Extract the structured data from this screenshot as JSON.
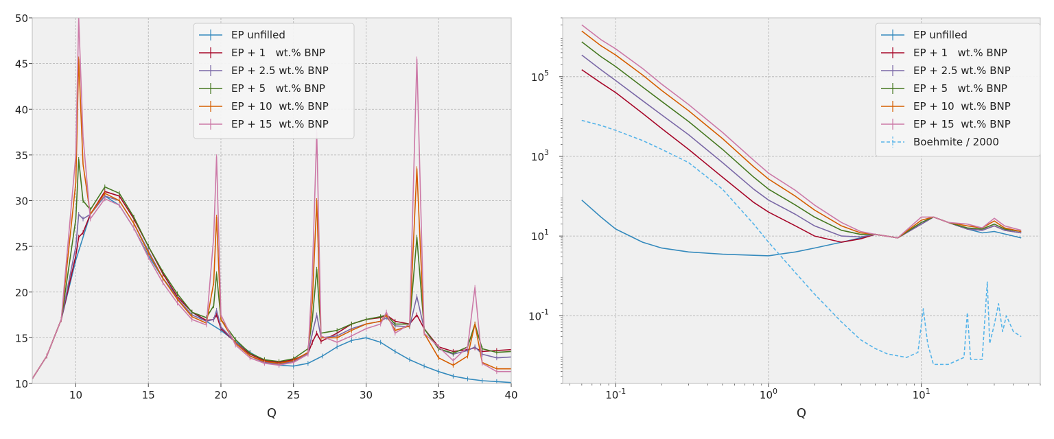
{
  "colors": {
    "bg": "#f0f0f0",
    "grid": "#b0b0b0",
    "EP unfilled": "#348abd",
    "EP + 1   wt.% BNP": "#a60628",
    "EP + 2.5 wt.% BNP": "#7a68a6",
    "EP + 5   wt.% BNP": "#467821",
    "EP + 10  wt.% BNP": "#d55e00",
    "EP + 15  wt.% BNP": "#cc79a7",
    "Boehmite / 2000": "#56b4e9"
  },
  "chart_data": [
    {
      "type": "line",
      "xlabel": "Q",
      "ylabel": "",
      "xlim": [
        7,
        40
      ],
      "ylim": [
        10,
        50
      ],
      "xscale": "linear",
      "yscale": "linear",
      "xticks": [
        10,
        15,
        20,
        25,
        30,
        35,
        40
      ],
      "yticks": [
        10,
        15,
        20,
        25,
        30,
        35,
        40,
        45,
        50
      ],
      "grid": true,
      "legend_position": "top-center",
      "error_bars": true,
      "series": [
        {
          "name": "EP unfilled",
          "x": [
            7,
            8,
            9,
            10,
            11,
            12,
            13,
            14,
            15,
            16,
            17,
            18,
            19,
            20,
            21,
            22,
            23,
            24,
            25,
            26,
            27,
            28,
            29,
            30,
            31,
            32,
            33,
            34,
            35,
            36,
            37,
            38,
            39,
            40
          ],
          "y": [
            10.5,
            13,
            17,
            23.5,
            28.5,
            30.5,
            29.5,
            27,
            24,
            21.5,
            19.5,
            17.8,
            16.8,
            15.8,
            14.6,
            13.4,
            12.5,
            12,
            11.9,
            12.2,
            13,
            14,
            14.7,
            15,
            14.5,
            13.5,
            12.6,
            11.9,
            11.3,
            10.8,
            10.5,
            10.3,
            10.2,
            10.1
          ]
        },
        {
          "name": "EP + 1   wt.% BNP",
          "x": [
            7,
            8,
            9,
            10,
            10.2,
            10.5,
            11,
            12,
            13,
            14,
            15,
            16,
            17,
            18,
            19,
            19.5,
            19.7,
            20,
            21,
            22,
            23,
            24,
            25,
            26,
            26.3,
            26.6,
            26.9,
            28,
            29,
            30,
            31,
            31.4,
            32,
            33,
            33.5,
            34,
            35,
            36,
            37,
            37.5,
            38,
            39,
            40
          ],
          "y": [
            10.5,
            13,
            17,
            24,
            26,
            26.5,
            28.5,
            31,
            30.5,
            28,
            25,
            22,
            19.5,
            17.8,
            16.9,
            17,
            17.5,
            16,
            14.5,
            13.2,
            12.5,
            12.3,
            12.6,
            13.3,
            14.5,
            15.5,
            14.6,
            15.5,
            16.5,
            17,
            17.2,
            17.5,
            16.8,
            16.5,
            17.5,
            16,
            14,
            13.5,
            13.7,
            13.9,
            13.5,
            13.6,
            13.7
          ]
        },
        {
          "name": "EP + 2.5 wt.% BNP",
          "x": [
            7,
            8,
            9,
            10,
            10.2,
            10.5,
            11,
            12,
            13,
            14,
            15,
            16,
            17,
            18,
            19,
            19.5,
            19.7,
            20,
            21,
            22,
            23,
            24,
            25,
            26,
            26.3,
            26.6,
            26.9,
            28,
            29,
            30,
            31,
            31.4,
            32,
            33,
            33.5,
            34,
            35,
            36,
            37,
            37.5,
            38,
            39,
            40
          ],
          "y": [
            10.5,
            13,
            17,
            25,
            28.5,
            28,
            28.5,
            30.5,
            30,
            27.5,
            24.5,
            21.5,
            19.3,
            17.5,
            16.8,
            17,
            18,
            16.2,
            14.5,
            13,
            12.3,
            12.1,
            12.4,
            13.3,
            15.5,
            17.5,
            15,
            15.2,
            16,
            16.5,
            16.8,
            17.2,
            16.3,
            16.2,
            19.5,
            16,
            13.8,
            13.2,
            13.6,
            14,
            13.2,
            12.8,
            12.9
          ]
        },
        {
          "name": "EP + 5   wt.% BNP",
          "x": [
            7,
            8,
            9,
            10,
            10.2,
            10.5,
            11,
            12,
            13,
            14,
            15,
            16,
            17,
            18,
            19,
            19.5,
            19.7,
            20,
            21,
            22,
            23,
            24,
            25,
            26,
            26.3,
            26.6,
            26.9,
            28,
            29,
            30,
            31,
            31.4,
            32,
            33,
            33.5,
            34,
            35,
            36,
            37,
            37.5,
            38,
            39,
            40
          ],
          "y": [
            10.5,
            13,
            17,
            28,
            34.5,
            30,
            29,
            31.5,
            30.8,
            28.2,
            25,
            22.2,
            19.8,
            17.8,
            17.2,
            18.5,
            22,
            17,
            14.8,
            13.3,
            12.6,
            12.4,
            12.7,
            13.8,
            17,
            22.5,
            15.5,
            15.8,
            16.5,
            17,
            17.3,
            17.5,
            16.5,
            16.5,
            26,
            16,
            13.8,
            13.3,
            14,
            16.5,
            13.8,
            13.4,
            13.5
          ]
        },
        {
          "name": "EP + 10  wt.% BNP",
          "x": [
            7,
            8,
            9,
            10,
            10.2,
            10.5,
            11,
            12,
            13,
            14,
            15,
            16,
            17,
            18,
            19,
            19.5,
            19.7,
            20,
            21,
            22,
            23,
            24,
            25,
            26,
            26.3,
            26.6,
            26.9,
            28,
            29,
            30,
            31,
            31.4,
            32,
            33,
            33.5,
            34,
            35,
            36,
            37,
            37.5,
            38,
            39,
            40
          ],
          "y": [
            10.5,
            13,
            17,
            32,
            45.5,
            34,
            28.5,
            30.8,
            30,
            27.5,
            24.3,
            21.5,
            19.2,
            17.3,
            16.6,
            21,
            28.2,
            17,
            14.4,
            13,
            12.4,
            12.2,
            12.5,
            13.4,
            19,
            30,
            15,
            15,
            15.8,
            16.5,
            16.8,
            17.5,
            15.8,
            16.3,
            33.5,
            15.5,
            12.8,
            12,
            13,
            16.5,
            12.3,
            11.6,
            11.6
          ]
        },
        {
          "name": "EP + 15  wt.% BNP",
          "x": [
            7,
            8,
            9,
            10,
            10.2,
            10.5,
            11,
            12,
            13,
            14,
            15,
            16,
            17,
            18,
            19,
            19.5,
            19.7,
            20,
            21,
            22,
            23,
            24,
            25,
            26,
            26.3,
            26.6,
            26.9,
            28,
            29,
            30,
            31,
            31.4,
            32,
            33,
            33.5,
            34,
            35,
            36,
            37,
            37.5,
            38,
            39,
            40
          ],
          "y": [
            10.5,
            13,
            17,
            35,
            50,
            37,
            28,
            30.2,
            29.5,
            27,
            23.8,
            21,
            18.8,
            17,
            16.4,
            26,
            34.8,
            17.5,
            14.2,
            12.8,
            12.2,
            12,
            12.3,
            13.2,
            22,
            37.5,
            15.2,
            14.5,
            15.2,
            16,
            16.5,
            17.8,
            15.5,
            16.5,
            45.5,
            15.5,
            14,
            12.5,
            14,
            20.5,
            12.2,
            11.3,
            11.3
          ]
        }
      ]
    },
    {
      "type": "line",
      "xlabel": "Q",
      "ylabel": "",
      "xlim": [
        0.045,
        60
      ],
      "ylim": [
        0.002,
        3000000
      ],
      "xscale": "log",
      "yscale": "log",
      "xticks": [
        0.1,
        1,
        10
      ],
      "xtick_labels": [
        "10",
        "10",
        "10"
      ],
      "xtick_exponents": [
        "-1",
        "0",
        "1"
      ],
      "yticks": [
        0.1,
        10,
        1000,
        100000
      ],
      "ytick_labels": [
        "10",
        "10",
        "10",
        "10"
      ],
      "ytick_exponents": [
        "-1",
        "1",
        "3",
        "5"
      ],
      "grid": true,
      "legend_position": "top-right",
      "series": [
        {
          "name": "EP unfilled",
          "x": [
            0.06,
            0.08,
            0.1,
            0.15,
            0.2,
            0.3,
            0.5,
            1,
            1.5,
            2,
            3,
            4,
            5,
            7,
            10,
            12,
            15,
            20,
            25,
            30,
            40,
            45
          ],
          "y": [
            80,
            30,
            15,
            7,
            5,
            4,
            3.5,
            3.2,
            4,
            5,
            7,
            9,
            11,
            9,
            20,
            30,
            22,
            15,
            12,
            13,
            10,
            9
          ]
        },
        {
          "name": "EP + 1   wt.% BNP",
          "x": [
            0.06,
            0.08,
            0.1,
            0.15,
            0.2,
            0.3,
            0.5,
            0.8,
            1,
            1.5,
            2,
            3,
            4,
            5,
            7,
            10,
            12,
            15,
            20,
            25,
            30,
            35,
            45
          ],
          "y": [
            150000,
            70000,
            40000,
            12000,
            5000,
            1500,
            300,
            70,
            40,
            18,
            10,
            7,
            8.5,
            11,
            9,
            20,
            30,
            22,
            15,
            14,
            18,
            14,
            12
          ]
        },
        {
          "name": "EP + 2.5 wt.% BNP",
          "x": [
            0.06,
            0.08,
            0.1,
            0.15,
            0.2,
            0.3,
            0.5,
            0.8,
            1,
            1.5,
            2,
            3,
            4,
            5,
            7,
            10,
            12,
            15,
            20,
            25,
            30,
            35,
            45
          ],
          "y": [
            350000,
            150000,
            80000,
            25000,
            11000,
            3500,
            700,
            150,
            80,
            35,
            18,
            10,
            9.5,
            11,
            9,
            20,
            30,
            22,
            15,
            14,
            18,
            14,
            12
          ]
        },
        {
          "name": "EP + 5   wt.% BNP",
          "x": [
            0.06,
            0.08,
            0.1,
            0.15,
            0.2,
            0.3,
            0.5,
            0.8,
            1,
            1.5,
            2,
            3,
            4,
            5,
            7,
            10,
            12,
            15,
            20,
            25,
            30,
            35,
            45
          ],
          "y": [
            750000,
            320000,
            180000,
            55000,
            24000,
            7500,
            1500,
            300,
            150,
            60,
            30,
            14,
            11,
            11,
            9,
            22,
            30,
            22,
            16,
            15,
            20,
            15,
            13
          ]
        },
        {
          "name": "EP + 10  wt.% BNP",
          "x": [
            0.06,
            0.08,
            0.1,
            0.15,
            0.2,
            0.3,
            0.5,
            0.8,
            1,
            1.5,
            2,
            3,
            4,
            5,
            7,
            10,
            12,
            15,
            20,
            25,
            30,
            35,
            45
          ],
          "y": [
            1400000,
            600000,
            350000,
            110000,
            45000,
            14000,
            2800,
            550,
            270,
            100,
            45,
            18,
            12,
            11,
            9,
            25,
            30,
            22,
            18,
            16,
            24,
            16,
            13
          ]
        },
        {
          "name": "EP + 15  wt.% BNP",
          "x": [
            0.06,
            0.08,
            0.1,
            0.15,
            0.2,
            0.3,
            0.5,
            0.8,
            1,
            1.5,
            2,
            3,
            4,
            5,
            7,
            10,
            12,
            15,
            20,
            25,
            30,
            35,
            45
          ],
          "y": [
            2000000,
            850000,
            500000,
            160000,
            65000,
            20000,
            4000,
            800,
            380,
            140,
            60,
            22,
            13,
            11,
            9,
            30,
            30,
            22,
            20,
            16,
            28,
            18,
            14
          ]
        },
        {
          "name": "Boehmite / 2000",
          "x": [
            0.06,
            0.08,
            0.1,
            0.15,
            0.2,
            0.3,
            0.5,
            0.8,
            1,
            1.5,
            2,
            3,
            4,
            5,
            6,
            8,
            9.5,
            10.3,
            11,
            12,
            15,
            19,
            20,
            21,
            25,
            27,
            28,
            30,
            32,
            34,
            36,
            40,
            45
          ],
          "y": [
            8000,
            6000,
            4500,
            2500,
            1500,
            700,
            150,
            20,
            7,
            1.2,
            0.35,
            0.07,
            0.025,
            0.015,
            0.011,
            0.009,
            0.012,
            0.15,
            0.02,
            0.006,
            0.006,
            0.009,
            0.12,
            0.008,
            0.008,
            0.7,
            0.02,
            0.06,
            0.2,
            0.04,
            0.1,
            0.04,
            0.03
          ]
        }
      ]
    }
  ]
}
